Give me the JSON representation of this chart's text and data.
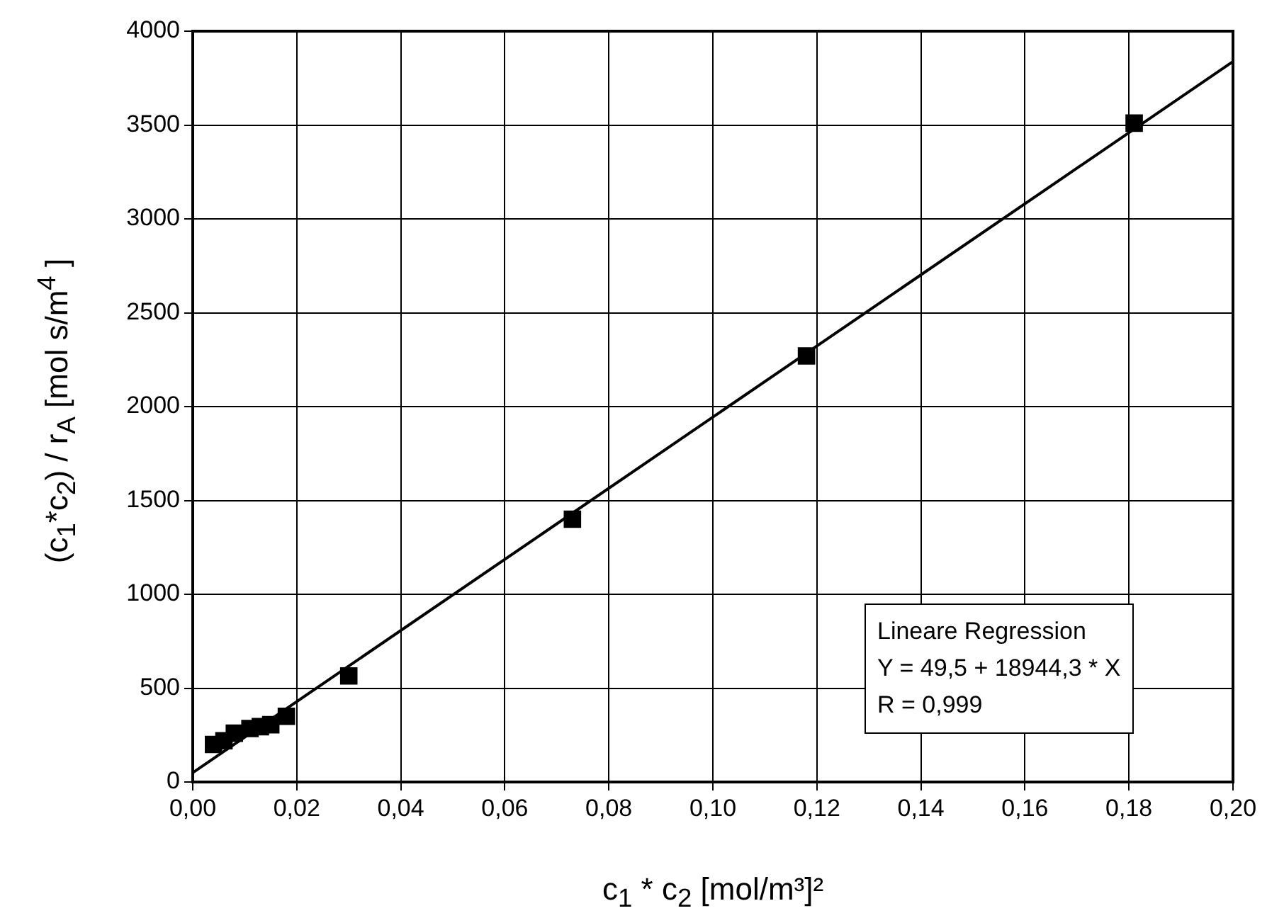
{
  "chart_data": {
    "type": "scatter",
    "xlabel": "c$_{1}$ * c$_{2}$  [mol/m³]²",
    "ylabel": "(c$_{1}$*c$_{2}$) / r$_{A}$  [mol s/m$^{4}$ ]",
    "x": [
      0.004,
      0.006,
      0.008,
      0.011,
      0.013,
      0.015,
      0.018,
      0.03,
      0.073,
      0.118,
      0.181
    ],
    "series": [
      {
        "color": "#000000",
        "marker": "square",
        "values": [
          200,
          220,
          260,
          285,
          295,
          305,
          350,
          565,
          1400,
          2270,
          3510
        ]
      },
      {
        "type": "line",
        "color": "#000000",
        "marker": "none",
        "line_style": "solid",
        "x": [
          0,
          0.2
        ],
        "values": [
          49.5,
          3838.4
        ]
      }
    ],
    "xlim": [
      0,
      0.2
    ],
    "xticks": [
      {
        "value": 0,
        "label": "0,00"
      },
      {
        "value": 0.02,
        "label": "0,02"
      },
      {
        "value": 0.04,
        "label": "0,04"
      },
      {
        "value": 0.06,
        "label": "0,06"
      },
      {
        "value": 0.08,
        "label": "0,08"
      },
      {
        "value": 0.1,
        "label": "0,10"
      },
      {
        "value": 0.12,
        "label": "0,12"
      },
      {
        "value": 0.14,
        "label": "0,14"
      },
      {
        "value": 0.16,
        "label": "0,16"
      },
      {
        "value": 0.18,
        "label": "0,18"
      },
      {
        "value": 0.2,
        "label": "0,20"
      }
    ],
    "ylim": [
      0,
      4000
    ],
    "yticks": [
      0,
      500,
      1000,
      1500,
      2000,
      2500,
      3000,
      3500,
      4000
    ],
    "grid": true,
    "legend": false,
    "annotations": [
      "Lineare Regression",
      "Y = 49,5 + 18944,3 * X",
      "R = 0,999"
    ]
  }
}
